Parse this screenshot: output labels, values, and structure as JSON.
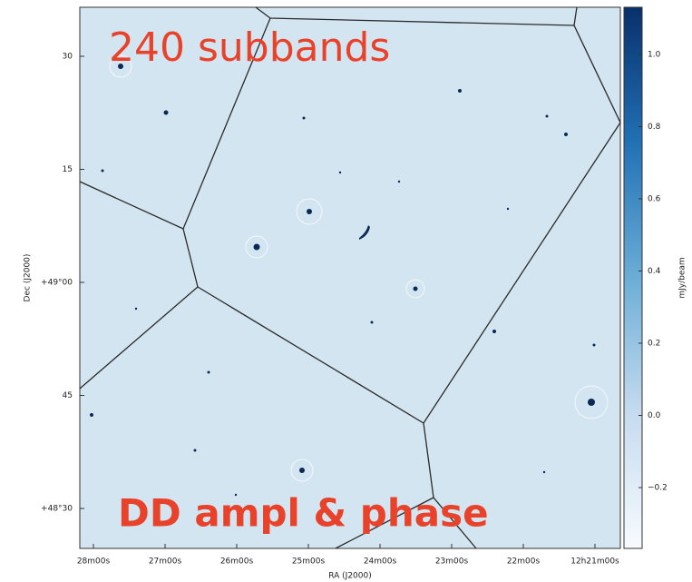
{
  "image": {
    "overlay_top": "240 subbands",
    "overlay_bottom": "DD ampl & phase",
    "y_axis_label": "Dec (J2000)",
    "x_axis_label": "RA (J2000)",
    "colorbar_label": "mJy/beam",
    "y_ticks": [
      "30",
      "15",
      "+49°00",
      "45",
      "+48°30"
    ],
    "x_ticks": [
      "28m00s",
      "27m00s",
      "26m00s",
      "25m00s",
      "24m00s",
      "23m00s",
      "22m00s",
      "12h21m00s"
    ],
    "colorbar_ticks": [
      "1.0",
      "0.8",
      "0.6",
      "0.4",
      "0.2",
      "0.0",
      "−0.2"
    ]
  }
}
